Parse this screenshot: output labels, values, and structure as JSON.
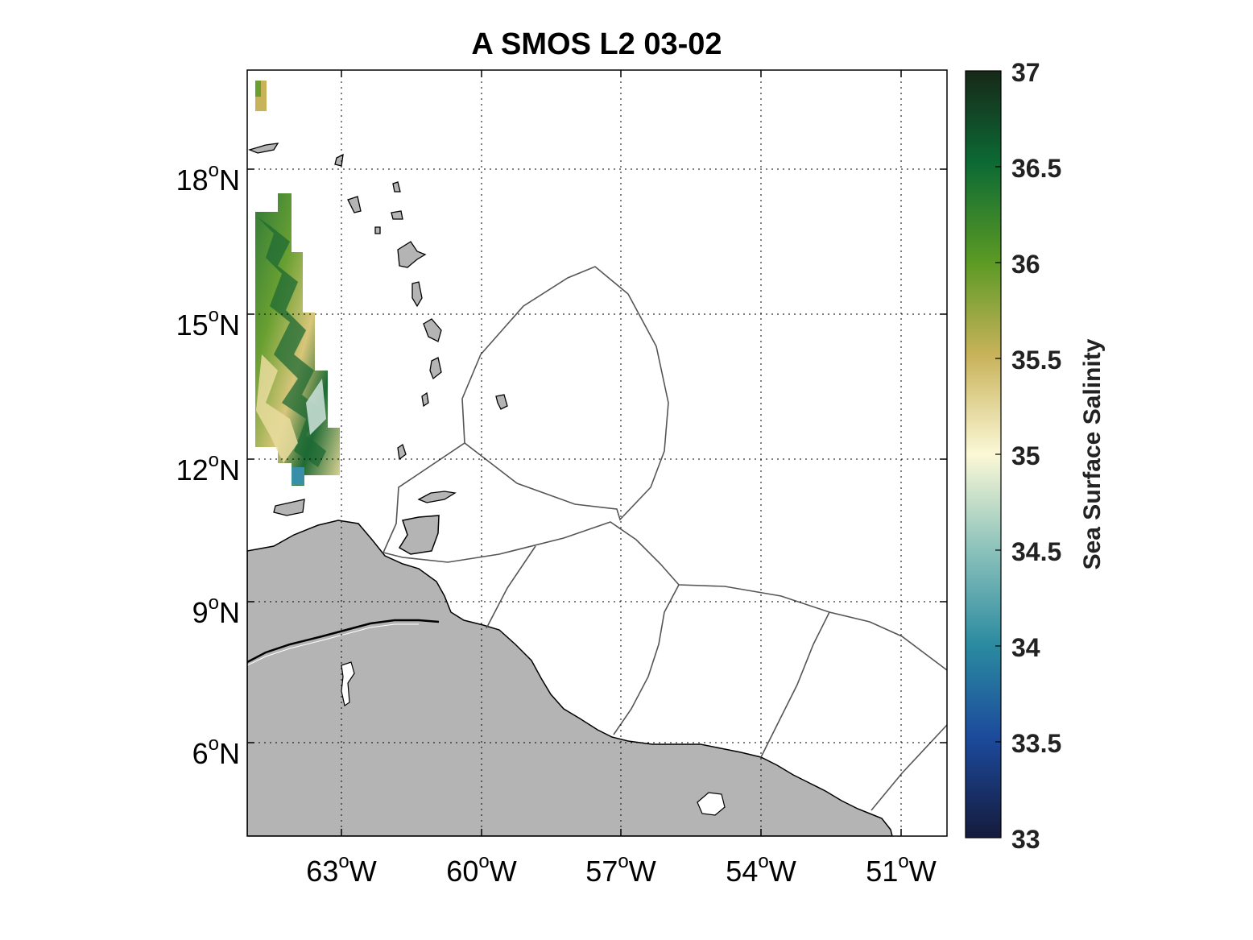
{
  "title": "A SMOS L2 03-02",
  "axes": {
    "lat_ticks": [
      {
        "deg": "18",
        "hemi": "N"
      },
      {
        "deg": "15",
        "hemi": "N"
      },
      {
        "deg": "12",
        "hemi": "N"
      },
      {
        "deg": "9",
        "hemi": "N"
      },
      {
        "deg": "6",
        "hemi": "N"
      }
    ],
    "lon_ticks": [
      {
        "deg": "63",
        "hemi": "W"
      },
      {
        "deg": "60",
        "hemi": "W"
      },
      {
        "deg": "57",
        "hemi": "W"
      },
      {
        "deg": "54",
        "hemi": "W"
      },
      {
        "deg": "51",
        "hemi": "W"
      }
    ],
    "degree_symbol": "o",
    "grid": "dotted"
  },
  "colorbar": {
    "title": "Sea Surface Salinity",
    "ticks": [
      "37",
      "36.5",
      "36",
      "35.5",
      "35",
      "34.5",
      "34",
      "33.5",
      "33"
    ],
    "range": [
      33,
      37
    ]
  },
  "colors": {
    "land": "#b4b4b4",
    "coastline": "#000000",
    "eez_lines": "#555555",
    "grid": "#000000"
  }
}
